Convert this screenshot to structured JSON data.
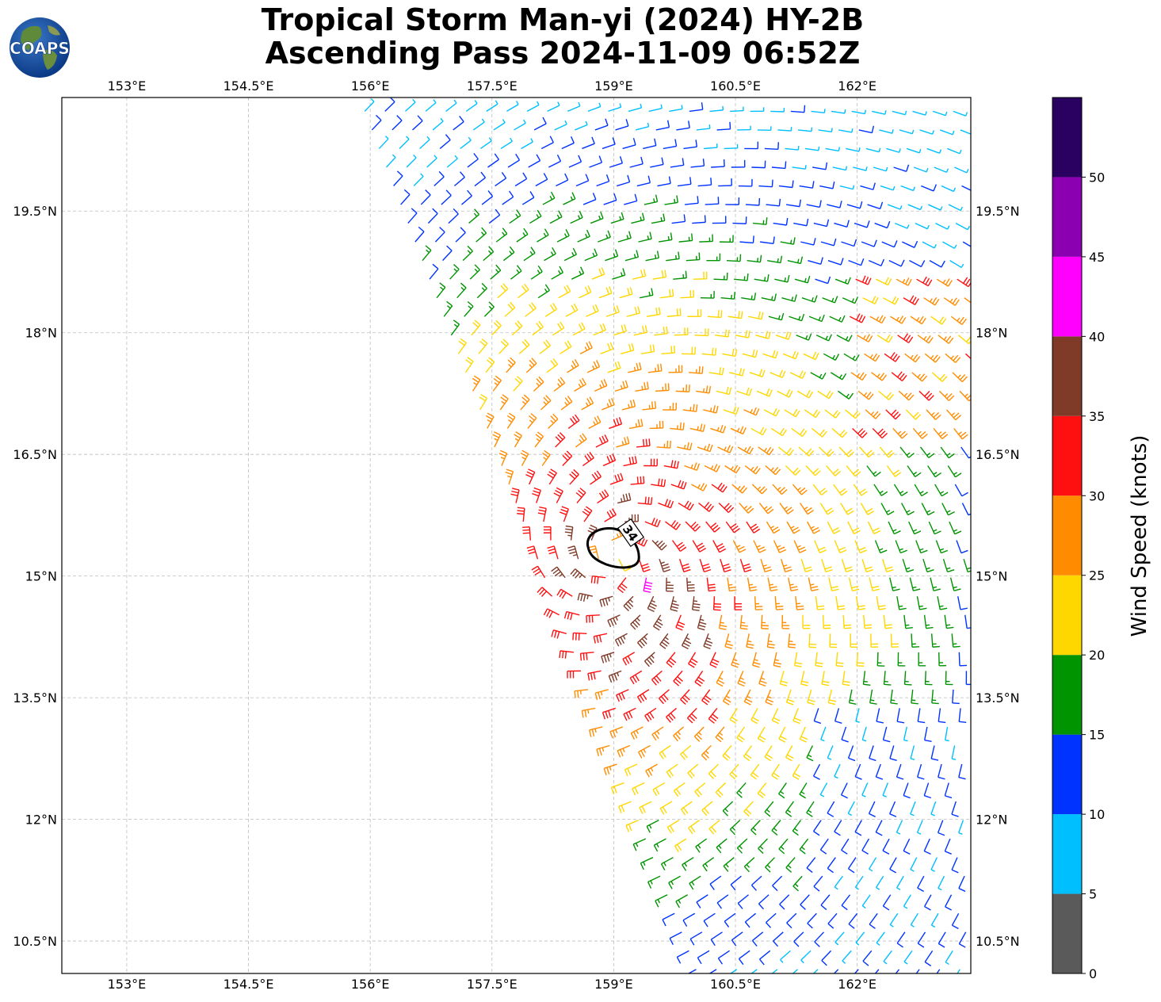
{
  "title": {
    "line1": "Tropical Storm Man-yi (2024) HY-2B",
    "line2": "Ascending Pass 2024-11-09 06:52Z"
  },
  "logo": {
    "text": "COAPS",
    "icon": "globe-logo"
  },
  "map": {
    "lon_range": [
      152.2,
      163.4
    ],
    "lat_range": [
      10.1,
      20.9
    ],
    "lon_ticks": [
      "153°E",
      "154.5°E",
      "156°E",
      "157.5°E",
      "159°E",
      "160.5°E",
      "162°E"
    ],
    "lon_tick_values": [
      153,
      154.5,
      156,
      157.5,
      159,
      160.5,
      162
    ],
    "lat_ticks": [
      "19.5°N",
      "18°N",
      "16.5°N",
      "15°N",
      "13.5°N",
      "12°N",
      "10.5°N"
    ],
    "lat_tick_values": [
      19.5,
      18,
      16.5,
      15,
      13.5,
      12,
      10.5
    ],
    "gridlines": true,
    "storm_center": {
      "lon": 159.0,
      "lat": 15.2
    },
    "contour_label": "34",
    "swath_note": "Ascending pass wind barbs colored by speed"
  },
  "colorbar": {
    "label": "Wind Speed (knots)",
    "ticks": [
      "0",
      "5",
      "10",
      "15",
      "20",
      "25",
      "30",
      "35",
      "40",
      "45",
      "50"
    ],
    "bins": [
      {
        "min": 0,
        "max": 5,
        "color": "#5a5a5a"
      },
      {
        "min": 5,
        "max": 10,
        "color": "#00bfff"
      },
      {
        "min": 10,
        "max": 15,
        "color": "#0033ff"
      },
      {
        "min": 15,
        "max": 20,
        "color": "#009400"
      },
      {
        "min": 20,
        "max": 25,
        "color": "#ffd700"
      },
      {
        "min": 25,
        "max": 30,
        "color": "#ff8c00"
      },
      {
        "min": 30,
        "max": 35,
        "color": "#ff1010"
      },
      {
        "min": 35,
        "max": 40,
        "color": "#7f3a28"
      },
      {
        "min": 40,
        "max": 45,
        "color": "#ff00ff"
      },
      {
        "min": 45,
        "max": 50,
        "color": "#8b00b0"
      },
      {
        "min": 50,
        "max": 55,
        "color": "#2a0060"
      }
    ]
  }
}
